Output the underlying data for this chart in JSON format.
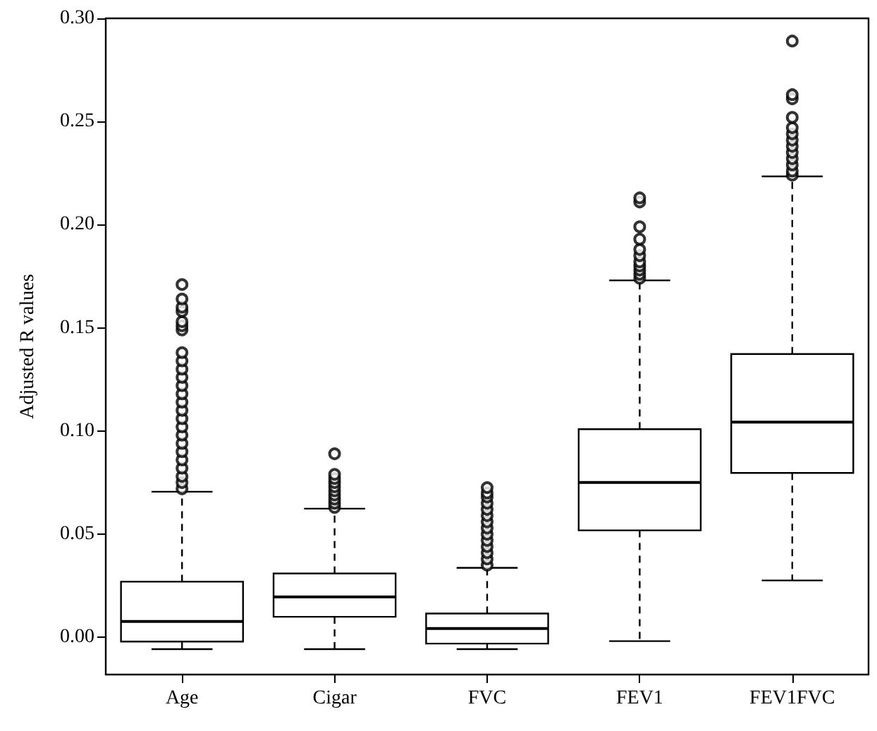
{
  "chart_data": {
    "type": "box",
    "ylabel": "Adjusted R values",
    "categories": [
      "Age",
      "Cigar",
      "FVC",
      "FEV1",
      "FEV1FVC"
    ],
    "boxes": [
      {
        "low": -0.0057,
        "q1": -0.002,
        "median": 0.0077,
        "q3": 0.027,
        "high": 0.0706,
        "outliers": [
          0.072,
          0.075,
          0.078,
          0.082,
          0.086,
          0.09,
          0.094,
          0.098,
          0.102,
          0.106,
          0.11,
          0.114,
          0.118,
          0.122,
          0.126,
          0.13,
          0.134,
          0.138,
          0.149,
          0.151,
          0.153,
          0.158,
          0.16,
          0.164,
          0.171
        ]
      },
      {
        "low": -0.0057,
        "q1": 0.01,
        "median": 0.0196,
        "q3": 0.031,
        "high": 0.0624,
        "outliers": [
          0.063,
          0.065,
          0.067,
          0.069,
          0.071,
          0.073,
          0.075,
          0.077,
          0.079,
          0.089
        ]
      },
      {
        "low": -0.0057,
        "q1": -0.003,
        "median": 0.0043,
        "q3": 0.0116,
        "high": 0.0337,
        "outliers": [
          0.035,
          0.038,
          0.041,
          0.044,
          0.047,
          0.05,
          0.053,
          0.056,
          0.059,
          0.062,
          0.065,
          0.068,
          0.07,
          0.0726
        ]
      },
      {
        "low": -0.0018,
        "q1": 0.0519,
        "median": 0.0751,
        "q3": 0.1009,
        "high": 0.173,
        "outliers": [
          0.174,
          0.176,
          0.178,
          0.18,
          0.182,
          0.185,
          0.188,
          0.193,
          0.199,
          0.211,
          0.213
        ]
      },
      {
        "low": 0.0276,
        "q1": 0.0797,
        "median": 0.1043,
        "q3": 0.1373,
        "high": 0.2234,
        "outliers": [
          0.224,
          0.226,
          0.229,
          0.232,
          0.235,
          0.238,
          0.241,
          0.244,
          0.247,
          0.252,
          0.261,
          0.263,
          0.289
        ]
      }
    ],
    "ylim": [
      -0.018,
      0.3
    ],
    "yticks": [
      {
        "value": 0,
        "label": "0.00"
      },
      {
        "value": 0.05,
        "label": "0.05"
      },
      {
        "value": 0.1,
        "label": "0.10"
      },
      {
        "value": 0.15,
        "label": "0.15"
      },
      {
        "value": 0.2,
        "label": "0.20"
      },
      {
        "value": 0.25,
        "label": "0.25"
      },
      {
        "value": 0.3,
        "label": "0.30"
      }
    ],
    "marker": "circle"
  }
}
